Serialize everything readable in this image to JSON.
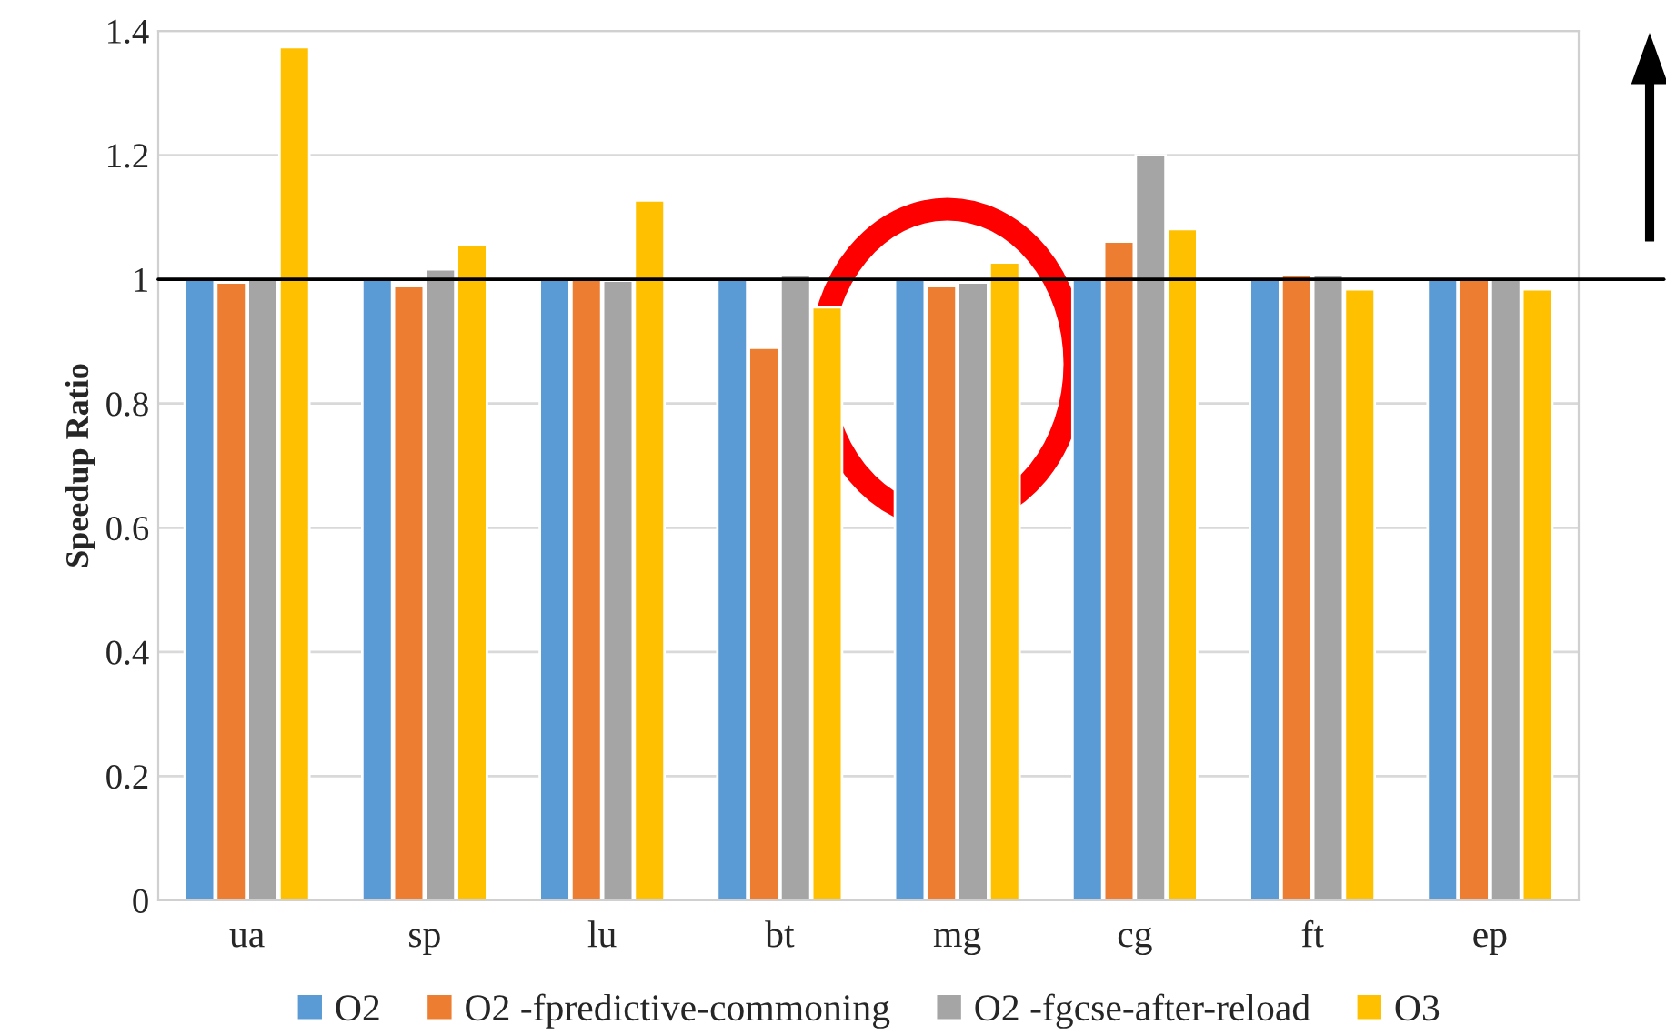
{
  "chart_data": {
    "type": "bar",
    "ylabel": "Speedup Ratio",
    "categories": [
      "ua",
      "sp",
      "lu",
      "bt",
      "mg",
      "cg",
      "ft",
      "ep"
    ],
    "series": [
      {
        "name": "O2",
        "color": "#5b9bd5",
        "values": [
          1,
          1,
          1,
          1,
          1,
          1,
          1,
          1
        ]
      },
      {
        "name": "O2 -fpredictive-commoning",
        "color": "#ed7d31",
        "values": [
          0.995,
          0.989,
          1.0,
          0.89,
          0.989,
          1.061,
          1.008,
          1.0
        ]
      },
      {
        "name": "O2 -fgcse-after-reload",
        "color": "#a5a5a5",
        "values": [
          1.0,
          1.016,
          0.998,
          1.008,
          0.995,
          1.2,
          1.008,
          1.0
        ]
      },
      {
        "name": "O3",
        "color": "#ffc000",
        "values": [
          1.374,
          1.055,
          1.127,
          0.955,
          1.027,
          1.081,
          0.984,
          0.984
        ]
      }
    ],
    "ylim": [
      0,
      1.4
    ],
    "yticks": [
      0,
      0.2,
      0.4,
      0.6,
      0.8,
      1,
      1.2,
      1.4
    ],
    "ref_lines": [
      {
        "axis": "y",
        "value": 1,
        "color": "#000000"
      }
    ],
    "grid": "y",
    "legend": "bottom"
  }
}
